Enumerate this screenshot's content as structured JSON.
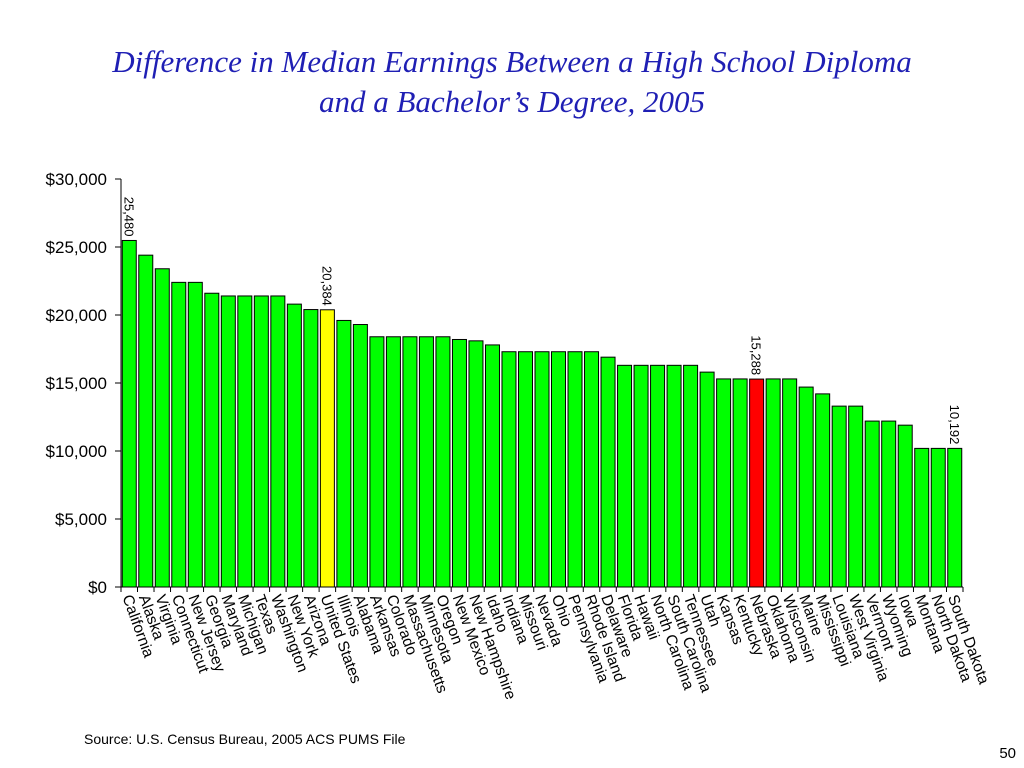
{
  "slide": {
    "title_line1": "Difference in Median Earnings Between a High School Diploma",
    "title_line2": "and a Bachelor’s Degree, 2005",
    "source": "Source:  U.S. Census Bureau, 2005 ACS PUMS File",
    "page_number": "50"
  },
  "colors": {
    "title": "#1f1fb4",
    "bar_default": "#00ff00",
    "bar_highlight_us": "#ffff00",
    "bar_highlight_state": "#ff0000",
    "bar_stroke": "#000000"
  },
  "chart_data": {
    "type": "bar",
    "title": "",
    "xlabel": "",
    "ylabel": "",
    "ylim": [
      0,
      30000
    ],
    "yticks": [
      0,
      5000,
      10000,
      15000,
      20000,
      25000,
      30000
    ],
    "ytick_labels": [
      "$0",
      "$5,000",
      "$10,000",
      "$15,000",
      "$20,000",
      "$25,000",
      "$30,000"
    ],
    "grid": false,
    "legend": "none",
    "categories": [
      "California",
      "Alaska",
      "Virginia",
      "Connecticut",
      "New Jersey",
      "Georgia",
      "Maryland",
      "Michigan",
      "Texas",
      "Washington",
      "New York",
      "Arizona",
      "United States",
      "Illinois",
      "Alabama",
      "Arkansas",
      "Colorado",
      "Massachusetts",
      "Minnesota",
      "Oregon",
      "New Mexico",
      "New Hampshire",
      "Idaho",
      "Indiana",
      "Missouri",
      "Nevada",
      "Ohio",
      "Pennsylvania",
      "Rhode Island",
      "Delaware",
      "Florida",
      "Hawaii",
      "North Carolina",
      "South Carolina",
      "Tennessee",
      "Utah",
      "Kansas",
      "Kentucky",
      "Nebraska",
      "Oklahoma",
      "Wisconsin",
      "Maine",
      "Mississippi",
      "Louisiana",
      "West Virginia",
      "Vermont",
      "Wyoming",
      "Iowa",
      "Montana",
      "North Dakota",
      "South Dakota"
    ],
    "values": [
      25480,
      24400,
      23400,
      22400,
      22400,
      21600,
      21400,
      21400,
      21400,
      21400,
      20800,
      20400,
      20384,
      19600,
      19300,
      18400,
      18400,
      18400,
      18400,
      18400,
      18200,
      18100,
      17800,
      17300,
      17300,
      17300,
      17300,
      17300,
      17300,
      16900,
      16300,
      16300,
      16300,
      16300,
      16300,
      15800,
      15300,
      15300,
      15288,
      15300,
      15300,
      14700,
      14200,
      13300,
      13300,
      12200,
      12200,
      11900,
      10192,
      10192,
      10192
    ],
    "highlight_us": [
      "United States"
    ],
    "highlight_state": [
      "Nebraska"
    ],
    "data_labels": [
      {
        "category": "California",
        "text": "25,480"
      },
      {
        "category": "United States",
        "text": "20,384"
      },
      {
        "category": "Nebraska",
        "text": "15,288"
      },
      {
        "category": "South Dakota",
        "text": "10,192"
      }
    ]
  }
}
